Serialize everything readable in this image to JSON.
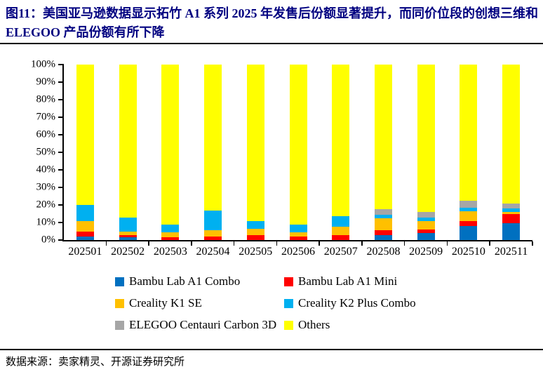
{
  "title": "图11：美国亚马逊数据显示拓竹 A1 系列 2025 年发售后份额显著提升，而同价位段的创想三维和 ELEGOO 产品份额有所下降",
  "footer": {
    "source": "数据来源：卖家精灵、开源证券研究所"
  },
  "chart_data": {
    "type": "bar",
    "stacked": true,
    "unit": "percent",
    "title": "",
    "xlabel": "",
    "ylabel": "",
    "ylim": [
      0,
      100
    ],
    "y_tick_labels": [
      "0%",
      "10%",
      "20%",
      "30%",
      "40%",
      "50%",
      "60%",
      "70%",
      "80%",
      "90%",
      "100%"
    ],
    "grid": false,
    "legend_position": "bottom",
    "categories": [
      "202501",
      "202502",
      "202503",
      "202504",
      "202505",
      "202506",
      "202507",
      "202508",
      "202509",
      "202510",
      "202511"
    ],
    "series": [
      {
        "name": "Bambu Lab A1 Combo",
        "key": "combo",
        "color": "#0070C0",
        "values": [
          2,
          1.5,
          0,
          0,
          0,
          0,
          0,
          3,
          4,
          8,
          9.5
        ]
      },
      {
        "name": "Bambu Lab A1 Mini",
        "key": "mini",
        "color": "#FF0000",
        "values": [
          3,
          1.5,
          1.5,
          2,
          3,
          2,
          3,
          2.5,
          2,
          3,
          5.5
        ]
      },
      {
        "name": "Creality K1 SE",
        "key": "k1se",
        "color": "#FFC000",
        "values": [
          6,
          2,
          3,
          3.5,
          3.5,
          2.5,
          4.5,
          7,
          5,
          5.5,
          1
        ]
      },
      {
        "name": "Creality K2 Plus Combo",
        "key": "k2plus",
        "color": "#00B0F0",
        "values": [
          9,
          8,
          4.5,
          11.5,
          4.5,
          4.5,
          6,
          2,
          2,
          2,
          2
        ]
      },
      {
        "name": "ELEGOO Centauri Carbon 3D",
        "key": "elegoo",
        "color": "#A6A6A6",
        "values": [
          0,
          0,
          0,
          0,
          0,
          0,
          0,
          3,
          3,
          4,
          3
        ]
      },
      {
        "name": "Others",
        "key": "others",
        "color": "#FFFF00",
        "values": [
          80,
          87,
          91,
          83,
          89,
          91,
          86.5,
          82.5,
          84,
          77.5,
          79
        ]
      }
    ]
  }
}
